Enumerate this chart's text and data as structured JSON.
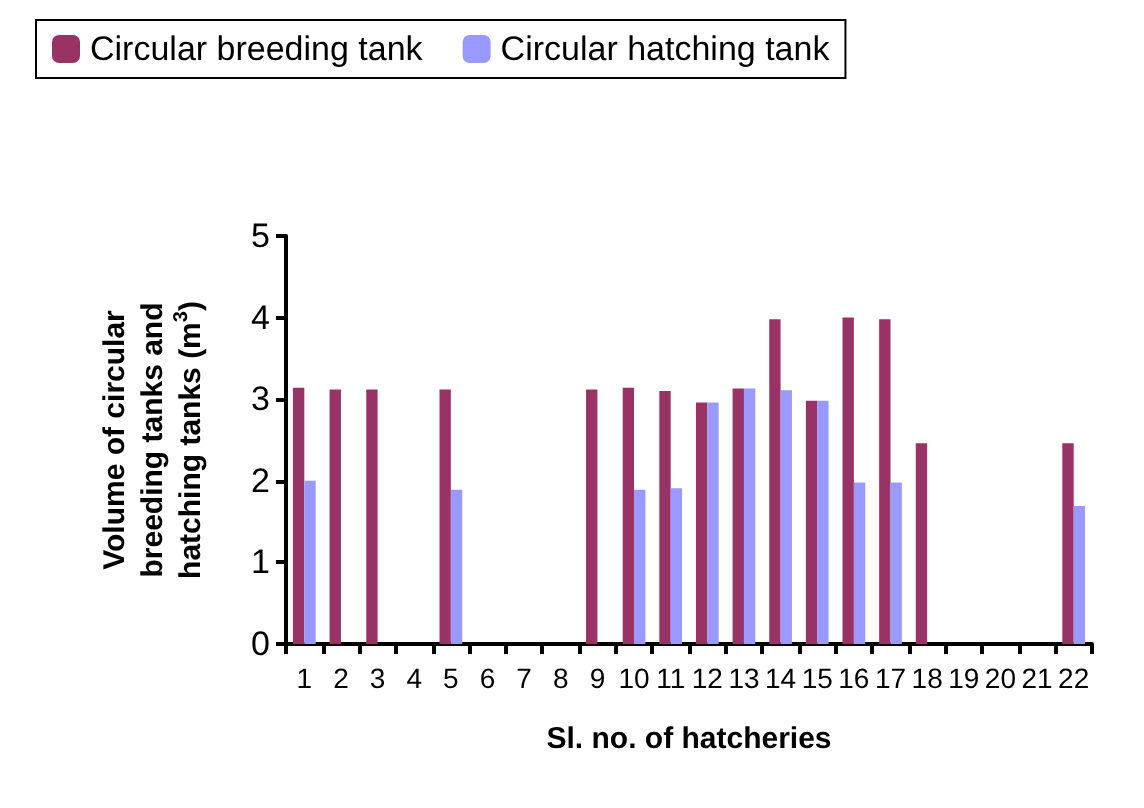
{
  "chart_data": {
    "type": "bar",
    "xlabel": "Sl. no. of hatcheries",
    "ylabel": "Volume of circular breeding tanks and hatching tanks (m$^{3}$)",
    "categories": [
      "1",
      "2",
      "3",
      "4",
      "5",
      "6",
      "7",
      "8",
      "9",
      "10",
      "11",
      "12",
      "13",
      "14",
      "15",
      "16",
      "17",
      "18",
      "19",
      "20",
      "21",
      "22"
    ],
    "series": [
      {
        "name": "Circular breeding tank",
        "color": "#993366",
        "values": [
          3.14,
          3.12,
          3.12,
          0,
          3.12,
          0,
          0,
          0,
          3.12,
          3.14,
          3.1,
          2.96,
          3.13,
          3.98,
          2.98,
          4.0,
          3.98,
          2.46,
          0,
          0,
          0,
          2.46
        ]
      },
      {
        "name": "Circular hatching tank",
        "color": "#9999ff",
        "values": [
          2.0,
          0,
          0,
          0,
          1.89,
          0,
          0,
          0,
          0,
          1.89,
          1.91,
          2.96,
          3.13,
          3.11,
          2.98,
          1.98,
          1.98,
          0,
          0,
          0,
          0,
          1.69
        ]
      }
    ],
    "ylim": [
      0,
      5
    ],
    "yticks": [
      0,
      1,
      2,
      3,
      4,
      5
    ],
    "grid": false,
    "legend": "top"
  }
}
